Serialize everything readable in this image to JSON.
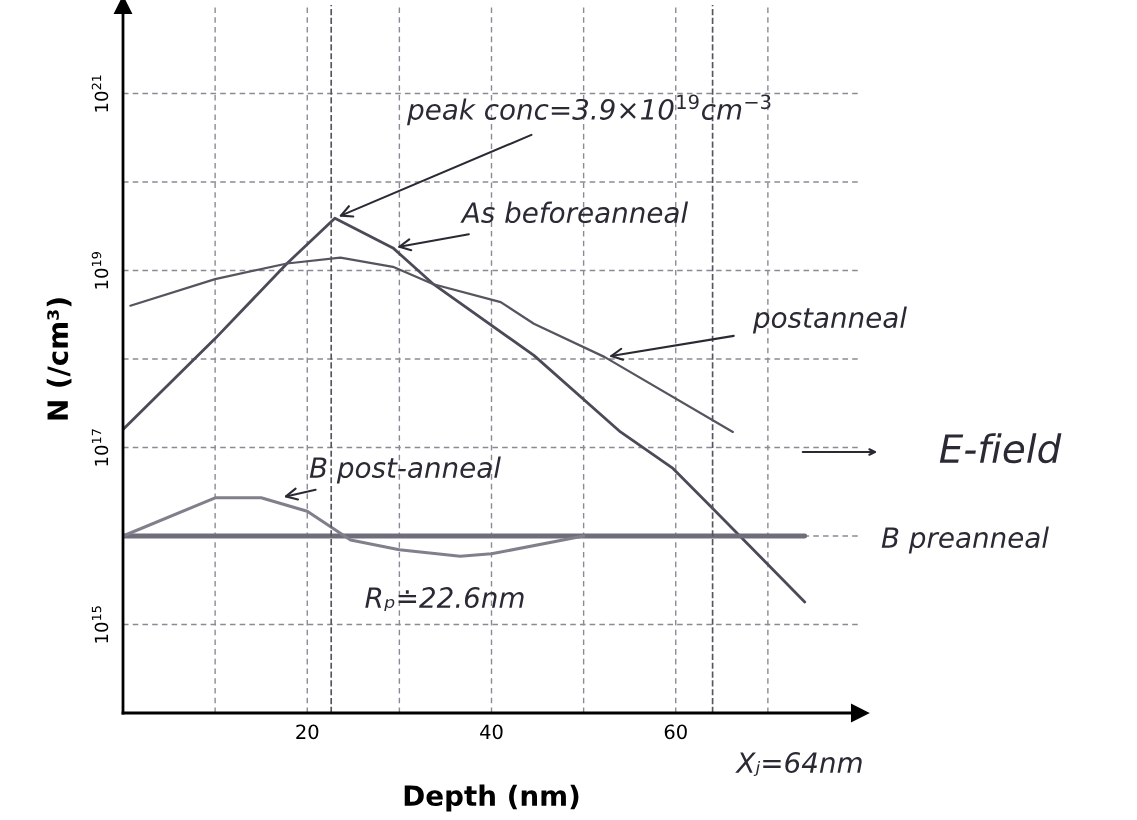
{
  "chart_data": {
    "type": "line",
    "xlabel": "Depth (nm)",
    "ylabel": "N (/cm³)",
    "xlim": [
      0,
      80
    ],
    "ylim": [
      100000000000000.0,
      1e+22
    ],
    "log": "y",
    "grid": true,
    "xticks": [
      {
        "value": 10,
        "label": null
      },
      20,
      {
        "value": 30,
        "label": null
      },
      40,
      {
        "value": 50,
        "label": null
      },
      60,
      {
        "value": 70,
        "label": null
      }
    ],
    "yticks": [
      {
        "value": 1000000000000000.0,
        "label": "10$^{15}$"
      },
      {
        "value": 1e+16,
        "label": null
      },
      {
        "value": 1e+17,
        "label": "10$^{17}$"
      },
      {
        "value": 1e+18,
        "label": null
      },
      {
        "value": 1e+19,
        "label": "10$^{19}$"
      },
      {
        "value": 1e+20,
        "label": null
      },
      {
        "value": 1e+21,
        "label": "10$^{21}$"
      }
    ],
    "series": [
      {
        "color": "#4a4a58",
        "x": [
          0,
          10,
          17.8,
          23,
          29.3,
          33.7,
          44.6,
          54,
          59.7,
          65.3,
          74
        ],
        "values": [
          1.6e+17,
          1.7e+18,
          1.2e+19,
          3.9e+19,
          1.8e+19,
          7e+18,
          1.1e+18,
          1.5e+17,
          5.8e+16,
          1.5e+16,
          1800000000000000.0
        ]
      },
      {
        "color": "#55555f",
        "x": [
          0.8,
          10,
          17.8,
          23.6,
          29.3,
          33.7,
          41,
          44.6,
          52.3,
          66.2
        ],
        "values": [
          4e+18,
          8e+18,
          1.2e+19,
          1.4e+19,
          1.1e+19,
          7e+18,
          4.4e+18,
          2.5e+18,
          1.05e+18,
          1.5e+17
        ]
      },
      {
        "color": "#6e6e7a",
        "x": [
          0,
          74
        ],
        "values": [
          1e+16,
          1e+16
        ]
      },
      {
        "color": "#80808c",
        "x": [
          0,
          10,
          15,
          20,
          24.7,
          30,
          36.6,
          40,
          50
        ],
        "values": [
          1e+16,
          2.7e+16,
          2.7e+16,
          1.9e+16,
          9000000000000000.0,
          7000000000000000.0,
          5900000000000000.0,
          6300000000000000.0,
          1e+16
        ]
      }
    ],
    "ref_lines": [
      {
        "axis": "x",
        "value": 22.6,
        "label": "Rₚ≐22.6nm",
        "line_style": "dashed"
      },
      {
        "axis": "x",
        "value": 64,
        "label": "Xⱼ=64nm",
        "line_style": "dashed"
      }
    ],
    "annotations": [
      {
        "text": "peak conc=3.9×10$^{19}$cm$^{−3}$",
        "x": 23,
        "y": 3.9e+19
      },
      {
        "text": "As beforeanneal",
        "x": 29.3,
        "y": 1.8e+19
      },
      {
        "text": "postanneal",
        "x": 52.3,
        "y": 1.05e+18
      },
      {
        "text": "B post-anneal",
        "x": 17,
        "y": 2.7e+16
      },
      "E-field",
      {
        "text": "B preanneal",
        "x": 74,
        "y": 1e+16
      }
    ]
  }
}
